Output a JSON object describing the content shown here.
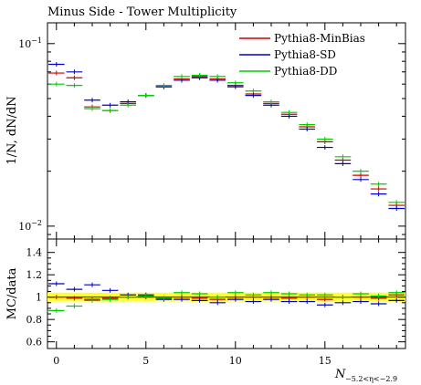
{
  "chart_data": {
    "title": "Minus Side - Tower Multiplicity",
    "type": "line",
    "main": {
      "ylabel": "1/N, dN/dN",
      "yscale": "log",
      "ylim": [
        0.0085,
        0.13
      ],
      "yticks": [
        {
          "value": 0.1,
          "base": "10",
          "exp": "−1"
        },
        {
          "value": 0.01,
          "base": "10",
          "exp": "−2"
        }
      ]
    },
    "ratio": {
      "ylabel": "MC/data",
      "ylim": [
        0.54,
        1.52
      ],
      "yticks": [
        "0.6",
        "0.8",
        "1",
        "1.2",
        "1.4"
      ],
      "band": [
        0.96,
        1.04
      ]
    },
    "xlabel": {
      "symbol": "N",
      "subscript": "−5.2<η<−2.9"
    },
    "xlim": [
      -0.5,
      19.5
    ],
    "xticks": [
      "0",
      "5",
      "10",
      "15"
    ],
    "x": [
      0,
      1,
      2,
      3,
      4,
      5,
      6,
      7,
      8,
      9,
      10,
      11,
      12,
      13,
      14,
      15,
      16,
      17,
      18,
      19
    ],
    "series": [
      {
        "name": "Pythia8-MinBias",
        "color": "#cc0000",
        "values": [
          0.069,
          0.065,
          0.045,
          0.043,
          0.047,
          0.052,
          0.058,
          0.064,
          0.066,
          0.064,
          0.059,
          0.053,
          0.047,
          0.041,
          0.035,
          0.029,
          0.023,
          0.019,
          0.016,
          0.013
        ],
        "ratio": [
          1.0,
          0.99,
          0.98,
          0.99,
          1.0,
          1.0,
          0.99,
          1.0,
          0.99,
          0.98,
          1.0,
          1.0,
          1.0,
          0.99,
          1.0,
          0.98,
          1.0,
          1.0,
          0.99,
          1.02
        ]
      },
      {
        "name": "Pythia8-SD",
        "color": "#0000cc",
        "values": [
          0.077,
          0.07,
          0.049,
          0.046,
          0.048,
          0.052,
          0.058,
          0.063,
          0.065,
          0.063,
          0.058,
          0.052,
          0.046,
          0.04,
          0.034,
          0.027,
          0.022,
          0.018,
          0.015,
          0.0125
        ],
        "ratio": [
          1.12,
          1.07,
          1.11,
          1.06,
          1.02,
          1.02,
          0.98,
          0.98,
          0.97,
          0.95,
          0.98,
          0.96,
          0.98,
          0.96,
          0.96,
          0.93,
          0.95,
          0.96,
          0.94,
          0.97
        ]
      },
      {
        "name": "Pythia8-DD",
        "color": "#00cc00",
        "values": [
          0.06,
          0.059,
          0.044,
          0.043,
          0.046,
          0.052,
          0.059,
          0.066,
          0.067,
          0.066,
          0.061,
          0.055,
          0.048,
          0.042,
          0.036,
          0.03,
          0.024,
          0.02,
          0.017,
          0.0135
        ],
        "ratio": [
          0.88,
          0.92,
          0.97,
          0.98,
          1.0,
          1.01,
          0.99,
          1.04,
          1.03,
          1.0,
          1.04,
          1.02,
          1.04,
          1.03,
          1.02,
          1.02,
          1.0,
          1.03,
          1.01,
          1.04
        ]
      }
    ]
  }
}
